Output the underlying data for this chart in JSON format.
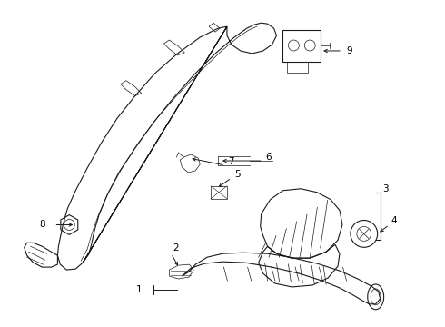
{
  "bg_color": "#ffffff",
  "line_color": "#1a1a1a",
  "label_color": "#000000",
  "fig_width": 4.9,
  "fig_height": 3.6,
  "dpi": 100
}
